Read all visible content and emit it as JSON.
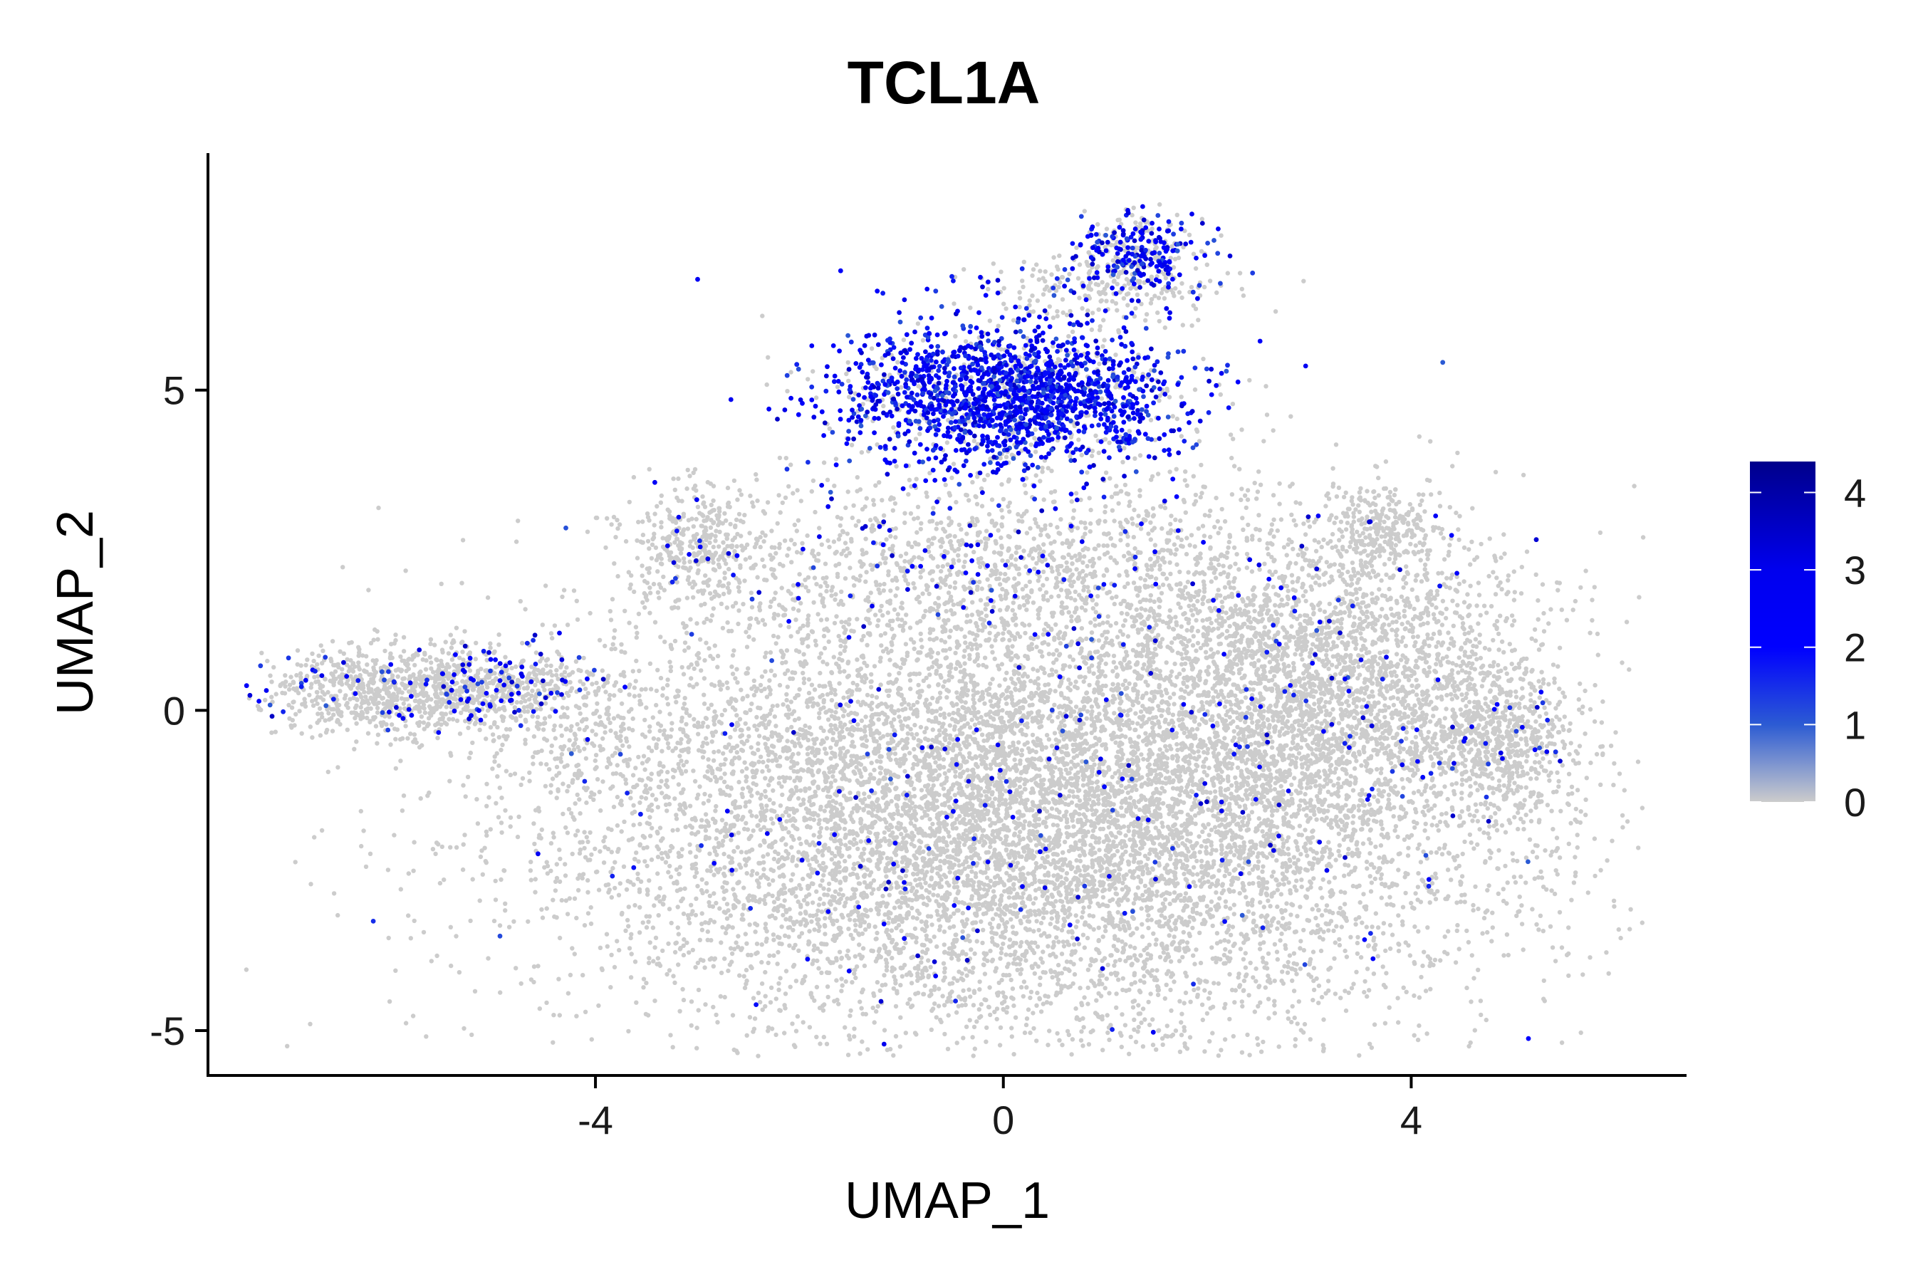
{
  "chart_data": {
    "type": "scatter",
    "title": "TCL1A",
    "xlabel": "UMAP_1",
    "ylabel": "UMAP_2",
    "xlim": [
      -7.8,
      6.7
    ],
    "ylim": [
      -5.7,
      8.7
    ],
    "x_ticks": [
      -4,
      0,
      4
    ],
    "y_ticks": [
      -5,
      0,
      5
    ],
    "grid": false,
    "legend": {
      "type": "colorbar",
      "placement": "right",
      "min": 0,
      "max": 4.4,
      "ticks": [
        0,
        1,
        2,
        3,
        4
      ],
      "stops": [
        {
          "value": 0,
          "color": "#cccccc"
        },
        {
          "value": 1,
          "color": "#2c5bd3"
        },
        {
          "value": 2,
          "color": "#0000ff"
        },
        {
          "value": 3,
          "color": "#0000ee"
        },
        {
          "value": 4.4,
          "color": "#00008b"
        }
      ]
    },
    "clusters": [
      {
        "name_note": "main body",
        "cx": 0.3,
        "cy": -1.6,
        "sx": 2.35,
        "sy": 1.75,
        "n": 11000,
        "express_frac": 0.02
      },
      {
        "name_note": "right lobe",
        "cx": 3.2,
        "cy": 0.6,
        "sx": 1.0,
        "sy": 1.2,
        "n": 2400,
        "express_frac": 0.025
      },
      {
        "name_note": "far right tip",
        "cx": 4.9,
        "cy": -0.4,
        "sx": 0.35,
        "sy": 0.5,
        "n": 500,
        "express_frac": 0.04
      },
      {
        "name_note": "upper right patch",
        "cx": 3.7,
        "cy": 2.9,
        "sx": 0.25,
        "sy": 0.3,
        "n": 250,
        "express_frac": 0.01
      },
      {
        "name_note": "left upper patch",
        "cx": -3.0,
        "cy": 2.6,
        "sx": 0.3,
        "sy": 0.45,
        "n": 350,
        "express_frac": 0.04
      },
      {
        "name_note": "middle bridge",
        "cx": 0.0,
        "cy": 2.3,
        "sx": 1.6,
        "sy": 0.7,
        "n": 1200,
        "express_frac": 0.08
      },
      {
        "name_note": "high expression band",
        "cx": 0.1,
        "cy": 4.9,
        "sx": 0.85,
        "sy": 0.55,
        "n": 2000,
        "express_frac": 0.78
      },
      {
        "name_note": "top tip",
        "cx": 1.3,
        "cy": 7.2,
        "sx": 0.3,
        "sy": 0.25,
        "n": 300,
        "express_frac": 0.55
      },
      {
        "name_note": "top tip tail",
        "cx": 1.0,
        "cy": 6.6,
        "sx": 0.6,
        "sy": 0.25,
        "n": 250,
        "express_frac": 0.2
      },
      {
        "name_note": "left island",
        "cx": -6.1,
        "cy": 0.3,
        "sx": 0.6,
        "sy": 0.35,
        "n": 750,
        "express_frac": 0.07
      },
      {
        "name_note": "left island right",
        "cx": -5.0,
        "cy": 0.4,
        "sx": 0.45,
        "sy": 0.3,
        "n": 450,
        "express_frac": 0.15
      },
      {
        "name_note": "left island bridge",
        "cx": -4.1,
        "cy": -0.3,
        "sx": 0.5,
        "sy": 0.5,
        "n": 150,
        "express_frac": 0.02
      }
    ]
  }
}
